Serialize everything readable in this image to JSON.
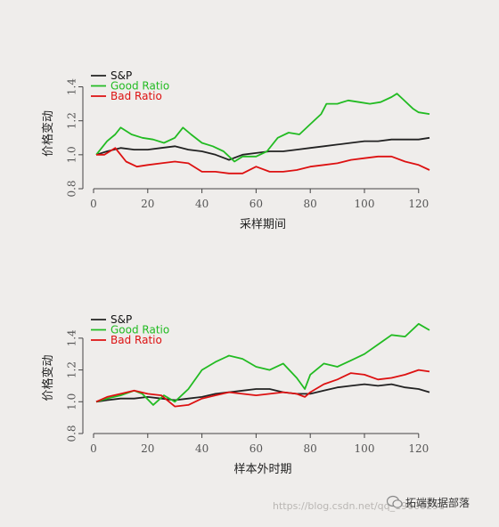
{
  "chart_data": [
    {
      "type": "line",
      "xlabel": "采样期间",
      "ylabel": "价格变动",
      "xlim": [
        0,
        125
      ],
      "ylim": [
        0.8,
        1.45
      ],
      "xticks": [
        0,
        20,
        40,
        60,
        80,
        100,
        120
      ],
      "yticks": [
        0.8,
        1.0,
        1.2,
        1.4
      ],
      "ytick_labels": [
        "0.8",
        "1.0",
        "1.2",
        "1.4"
      ],
      "legend": "top-left",
      "series": [
        {
          "name": "S&P",
          "color": "#222222",
          "x": [
            1,
            5,
            10,
            15,
            20,
            25,
            30,
            35,
            40,
            45,
            50,
            55,
            60,
            65,
            70,
            75,
            80,
            85,
            90,
            95,
            100,
            105,
            110,
            115,
            120,
            124
          ],
          "y": [
            1.0,
            1.02,
            1.04,
            1.03,
            1.03,
            1.04,
            1.05,
            1.03,
            1.02,
            1.0,
            0.97,
            1.0,
            1.01,
            1.02,
            1.02,
            1.03,
            1.04,
            1.05,
            1.06,
            1.07,
            1.08,
            1.08,
            1.09,
            1.09,
            1.09,
            1.1
          ]
        },
        {
          "name": "Good Ratio",
          "color": "#22bb22",
          "x": [
            1,
            5,
            8,
            10,
            14,
            18,
            22,
            26,
            30,
            33,
            36,
            40,
            44,
            48,
            52,
            55,
            60,
            64,
            68,
            72,
            76,
            80,
            84,
            86,
            90,
            94,
            98,
            102,
            106,
            110,
            112,
            114,
            118,
            120,
            124
          ],
          "y": [
            1.0,
            1.08,
            1.12,
            1.16,
            1.12,
            1.1,
            1.09,
            1.07,
            1.1,
            1.16,
            1.12,
            1.07,
            1.05,
            1.02,
            0.96,
            0.99,
            0.99,
            1.02,
            1.1,
            1.13,
            1.12,
            1.18,
            1.24,
            1.3,
            1.3,
            1.32,
            1.31,
            1.3,
            1.31,
            1.34,
            1.36,
            1.33,
            1.27,
            1.25,
            1.24
          ]
        },
        {
          "name": "Bad Ratio",
          "color": "#dd1111",
          "x": [
            1,
            4,
            8,
            10,
            12,
            16,
            20,
            25,
            30,
            35,
            40,
            45,
            50,
            55,
            60,
            65,
            70,
            75,
            80,
            85,
            90,
            95,
            100,
            105,
            110,
            115,
            120,
            124
          ],
          "y": [
            1.0,
            1.0,
            1.04,
            1.0,
            0.96,
            0.93,
            0.94,
            0.95,
            0.96,
            0.95,
            0.9,
            0.9,
            0.89,
            0.89,
            0.93,
            0.9,
            0.9,
            0.91,
            0.93,
            0.94,
            0.95,
            0.97,
            0.98,
            0.99,
            0.99,
            0.96,
            0.94,
            0.91
          ]
        }
      ]
    },
    {
      "type": "line",
      "xlabel": "样本外时期",
      "ylabel": "价格变动",
      "xlim": [
        0,
        125
      ],
      "ylim": [
        0.8,
        1.5
      ],
      "xticks": [
        0,
        20,
        40,
        60,
        80,
        100,
        120
      ],
      "yticks": [
        0.8,
        1.0,
        1.2,
        1.4
      ],
      "ytick_labels": [
        "0.8",
        "1.0",
        "1.2",
        "1.4"
      ],
      "legend": "top-left",
      "series": [
        {
          "name": "S&P",
          "color": "#222222",
          "x": [
            1,
            5,
            10,
            15,
            20,
            25,
            30,
            35,
            40,
            45,
            50,
            55,
            60,
            65,
            70,
            75,
            80,
            85,
            90,
            95,
            100,
            105,
            110,
            115,
            120,
            124
          ],
          "y": [
            1.0,
            1.01,
            1.02,
            1.02,
            1.03,
            1.02,
            1.01,
            1.02,
            1.03,
            1.05,
            1.06,
            1.07,
            1.08,
            1.08,
            1.06,
            1.05,
            1.05,
            1.07,
            1.09,
            1.1,
            1.11,
            1.1,
            1.11,
            1.09,
            1.08,
            1.06
          ]
        },
        {
          "name": "Good Ratio",
          "color": "#22bb22",
          "x": [
            1,
            5,
            10,
            15,
            18,
            22,
            26,
            30,
            35,
            40,
            45,
            50,
            55,
            60,
            65,
            70,
            75,
            78,
            80,
            85,
            90,
            95,
            100,
            105,
            110,
            115,
            120,
            124
          ],
          "y": [
            1.0,
            1.02,
            1.04,
            1.07,
            1.05,
            0.98,
            1.04,
            1.0,
            1.08,
            1.2,
            1.25,
            1.29,
            1.27,
            1.22,
            1.2,
            1.24,
            1.15,
            1.08,
            1.17,
            1.24,
            1.22,
            1.26,
            1.3,
            1.36,
            1.42,
            1.41,
            1.49,
            1.45
          ]
        },
        {
          "name": "Bad Ratio",
          "color": "#dd1111",
          "x": [
            1,
            5,
            10,
            15,
            20,
            25,
            30,
            35,
            40,
            45,
            50,
            55,
            60,
            65,
            70,
            75,
            78,
            80,
            85,
            90,
            95,
            100,
            105,
            110,
            115,
            120,
            124
          ],
          "y": [
            1.0,
            1.03,
            1.05,
            1.07,
            1.05,
            1.04,
            0.97,
            0.98,
            1.02,
            1.04,
            1.06,
            1.05,
            1.04,
            1.05,
            1.06,
            1.05,
            1.03,
            1.06,
            1.11,
            1.14,
            1.18,
            1.17,
            1.14,
            1.15,
            1.17,
            1.2,
            1.19
          ]
        }
      ]
    }
  ],
  "watermark": "https://blog.csdn.net/qq_19600291",
  "wechat_label": "拓端数据部落"
}
